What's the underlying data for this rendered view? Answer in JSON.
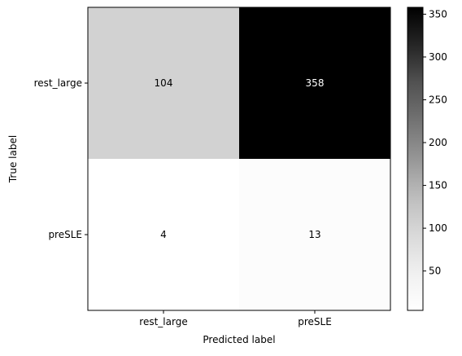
{
  "chart_data": {
    "type": "heatmap",
    "title": "",
    "xlabel": "Predicted label",
    "ylabel": "True label",
    "x_categories": [
      "rest_large",
      "preSLE"
    ],
    "y_categories": [
      "rest_large",
      "preSLE"
    ],
    "values": [
      [
        104,
        358
      ],
      [
        4,
        13
      ]
    ],
    "cell_labels": [
      [
        "104",
        "358"
      ],
      [
        "4",
        "13"
      ]
    ],
    "colormap": "Greys",
    "color_range": [
      4,
      358
    ],
    "colorbar_ticks": [
      50,
      100,
      150,
      200,
      250,
      300,
      350
    ],
    "colorbar_tick_labels": [
      "50",
      "100",
      "150",
      "200",
      "250",
      "300",
      "350"
    ],
    "grid": false
  }
}
